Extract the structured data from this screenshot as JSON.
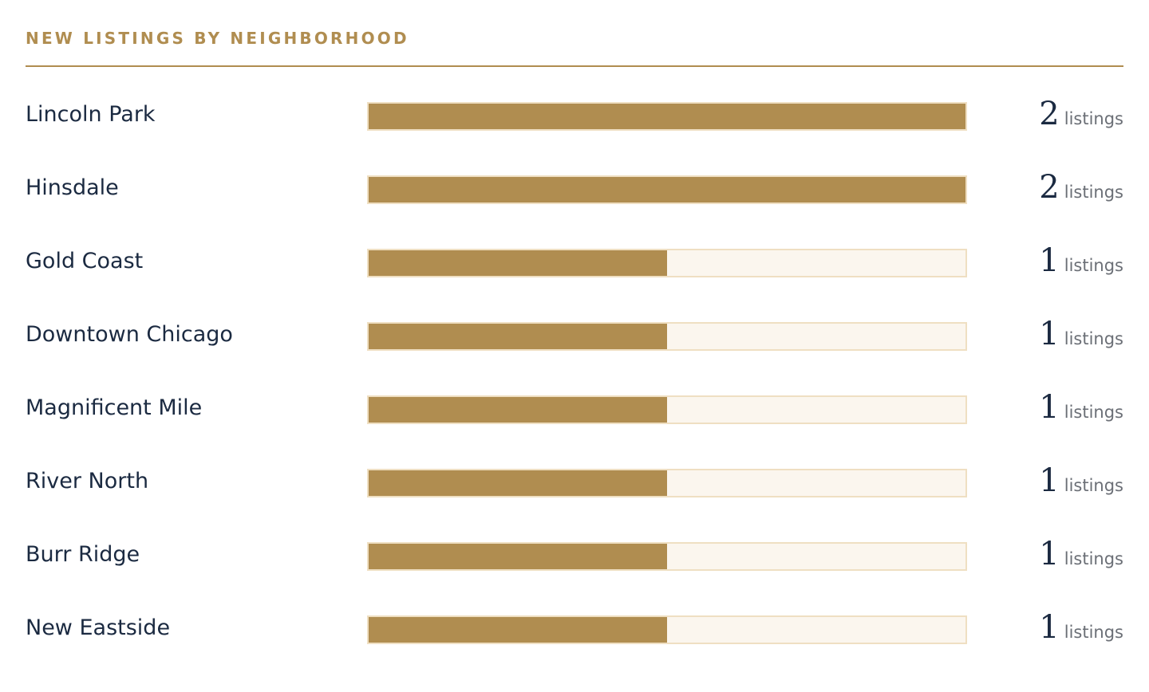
{
  "chart_data": {
    "type": "bar",
    "orientation": "horizontal",
    "title": "NEW LISTINGS BY NEIGHBORHOOD",
    "categories": [
      "Lincoln Park",
      "Hinsdale",
      "Gold Coast",
      "Downtown Chicago",
      "Magnificent Mile",
      "River North",
      "Burr Ridge",
      "New Eastside"
    ],
    "values": [
      2,
      2,
      1,
      1,
      1,
      1,
      1,
      1
    ],
    "unit_label": "listings",
    "xlim": [
      0,
      2
    ],
    "grid": false,
    "colors": {
      "bar": "#b08d50",
      "track": "#fbf6ee",
      "track_border": "#efdfc2",
      "title": "#b08d50",
      "text": "#1b2a41"
    }
  }
}
